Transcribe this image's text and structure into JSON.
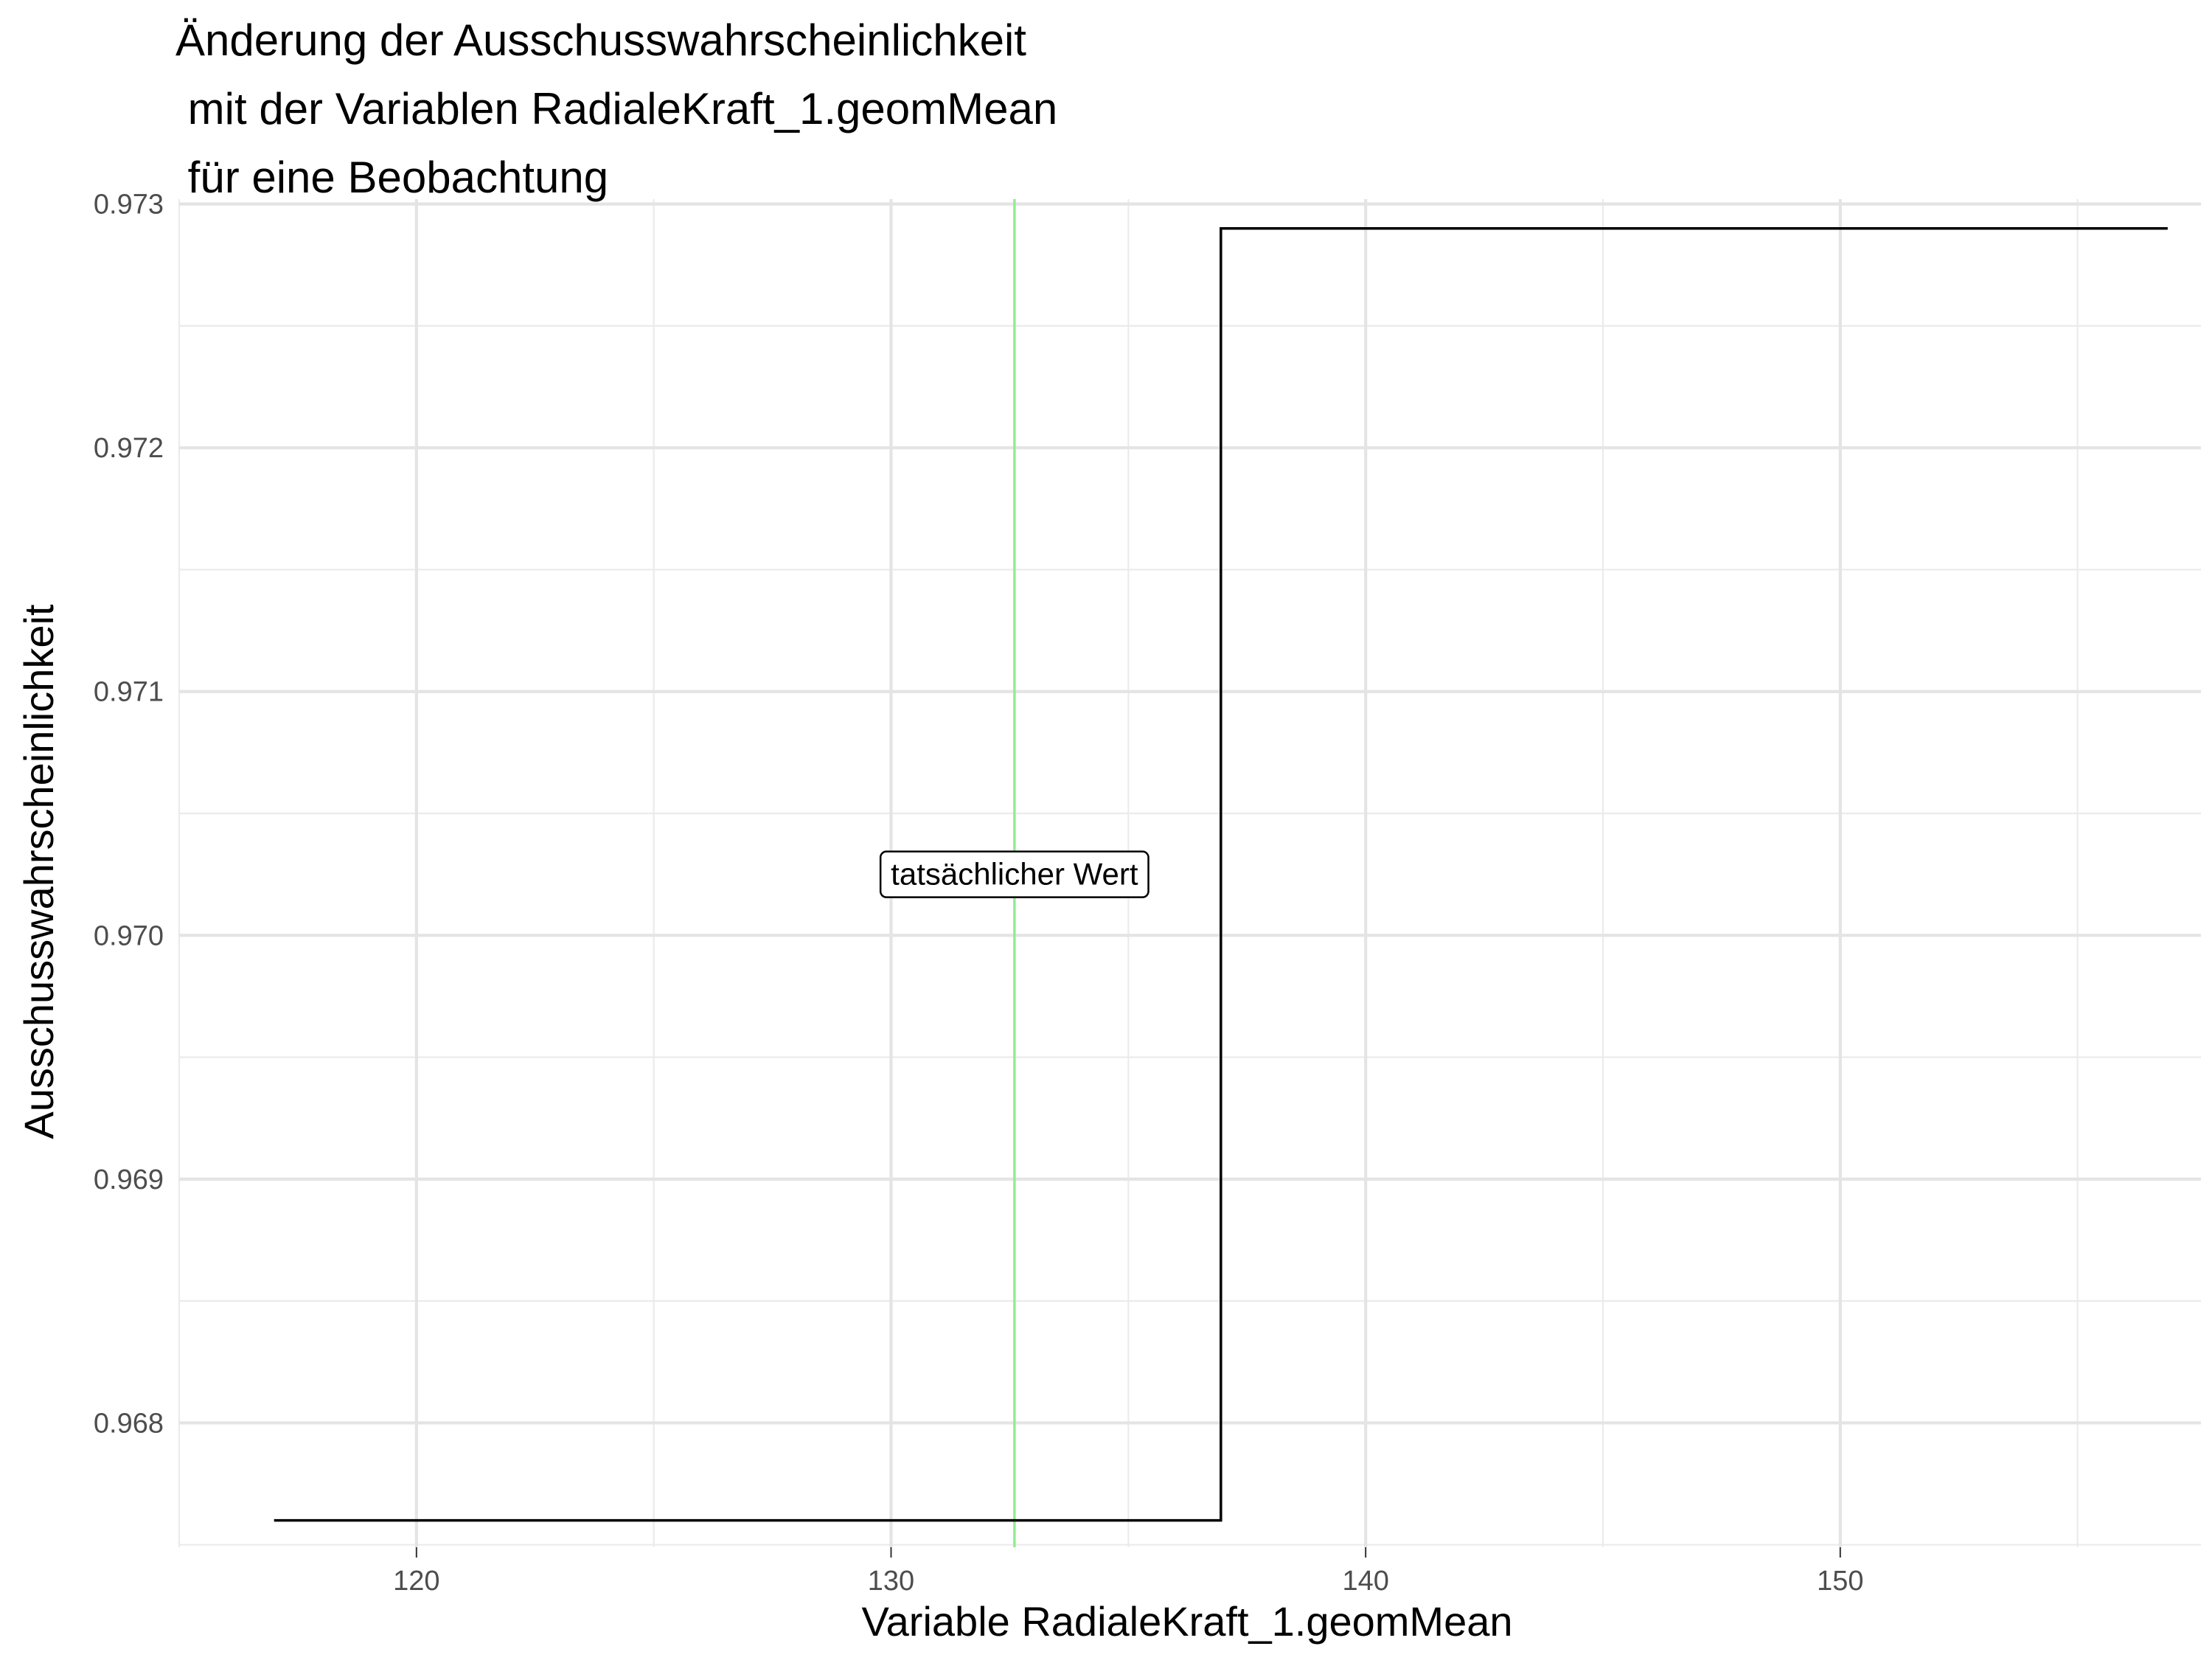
{
  "chart_data": {
    "type": "line",
    "title": "Änderung der Ausschusswahrscheinlichkeit\n mit der Variablen RadialeKraft_1.geomMean\n für eine Beobachtung",
    "xlabel": "Variable RadialeKraft_1.geomMean",
    "ylabel": "Ausschusswahrscheinlichkeit",
    "xlim": [
      115,
      157.6
    ],
    "ylim": [
      0.96749,
      0.97302
    ],
    "x_ticks": [
      120,
      130,
      140,
      150
    ],
    "x_tick_labels": [
      "120",
      "130",
      "140",
      "150"
    ],
    "y_ticks": [
      0.968,
      0.969,
      0.97,
      0.971,
      0.972,
      0.973
    ],
    "y_tick_labels": [
      "0.968",
      "0.969",
      "0.970",
      "0.971",
      "0.972",
      "0.973"
    ],
    "grid": true,
    "series": [
      {
        "color": "#000000",
        "step": true,
        "x": [
          117.0,
          136.95,
          136.95,
          156.9
        ],
        "y": [
          0.9676,
          0.9676,
          0.9729,
          0.9729
        ]
      }
    ],
    "reference_line": {
      "x": 132.6,
      "color": "#90ee90"
    },
    "annotation": {
      "text": "tatsächlicher Wert",
      "x": 132.6,
      "y": 0.97025
    }
  }
}
